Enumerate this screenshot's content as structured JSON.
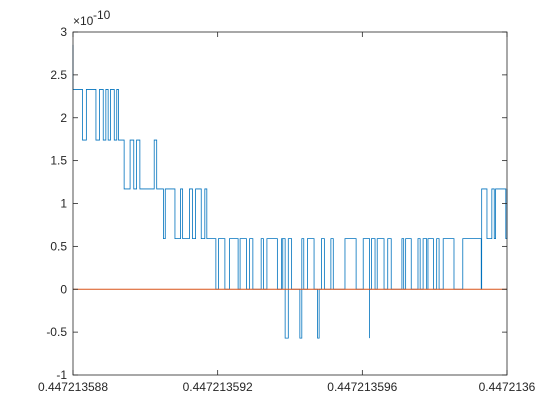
{
  "chart_data": {
    "type": "line",
    "title": "",
    "xlabel": "",
    "ylabel": "",
    "xlim": [
      0.447213588,
      0.4472136
    ],
    "ylim": [
      -1,
      3
    ],
    "y_exponent_label": "×10",
    "y_exponent_power": "-10",
    "grid": false,
    "x_ticks": [
      0.447213588,
      0.447213592,
      0.447213596,
      0.4472136
    ],
    "x_tick_labels": [
      "0.447213588",
      "0.447213592",
      "0.447213596",
      "0.4472136"
    ],
    "y_ticks": [
      -1,
      -0.5,
      0,
      0.5,
      1,
      1.5,
      2,
      2.5,
      3
    ],
    "y_tick_labels": [
      "-1",
      "-0.5",
      "0",
      "0.5",
      "1",
      "1.5",
      "2",
      "2.5",
      "3"
    ],
    "series": [
      {
        "color": "#0072BD",
        "style": "quantized-noise",
        "start_value": 2.85,
        "levels": [
          {
            "x_start": 0.447213588,
            "x_end": 0.4472135893,
            "base": 1.74,
            "alt": 2.33
          },
          {
            "x_start": 0.4472135893,
            "x_end": 0.4472135905,
            "base": 1.17,
            "alt": 1.74
          },
          {
            "x_start": 0.4472135905,
            "x_end": 0.4472135917,
            "base": 0.59,
            "alt": 1.17
          },
          {
            "x_start": 0.4472135917,
            "x_end": 0.4472135938,
            "base": 0.0,
            "alt": 0.59
          },
          {
            "x_start": 0.4472135938,
            "x_end": 0.4472135962,
            "base": 0.0,
            "alt": 0.59,
            "dip": -0.57
          },
          {
            "x_start": 0.4472135962,
            "x_end": 0.4472135993,
            "base": 0.0,
            "alt": 0.59
          },
          {
            "x_start": 0.4472135993,
            "x_end": 0.4472136,
            "base": 0.59,
            "alt": 1.17
          }
        ]
      },
      {
        "color": "#D95319",
        "style": "line",
        "x": [
          0.447213588,
          0.4472136
        ],
        "y": [
          0,
          0
        ]
      }
    ]
  }
}
